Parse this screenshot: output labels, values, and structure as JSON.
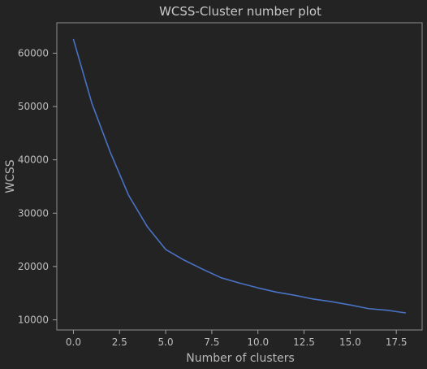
{
  "colors": {
    "background": "#232323",
    "axes_edge": "#8c8c8c",
    "tick": "#a0a0a0",
    "line": "#4a72c4"
  },
  "chart_data": {
    "type": "line",
    "title": "WCSS-Cluster number plot",
    "xlabel": "Number of clusters",
    "ylabel": "WCSS",
    "xlim": [
      -0.9,
      18.9
    ],
    "ylim": [
      8100,
      65700
    ],
    "xticks": [
      0.0,
      2.5,
      5.0,
      7.5,
      10.0,
      12.5,
      15.0,
      17.5
    ],
    "xtick_labels": [
      "0.0",
      "2.5",
      "5.0",
      "7.5",
      "10.0",
      "12.5",
      "15.0",
      "17.5"
    ],
    "yticks": [
      10000,
      20000,
      30000,
      40000,
      50000,
      60000
    ],
    "ytick_labels": [
      "10000",
      "20000",
      "30000",
      "40000",
      "50000",
      "60000"
    ],
    "grid": false,
    "series": [
      {
        "name": "WCSS",
        "x": [
          0,
          1,
          2,
          3,
          4,
          5,
          6,
          7,
          8,
          9,
          10,
          11,
          12,
          13,
          14,
          15,
          16,
          17,
          18
        ],
        "values": [
          62600,
          50600,
          41400,
          33300,
          27500,
          23200,
          21200,
          19500,
          17900,
          16900,
          16000,
          15200,
          14600,
          13900,
          13400,
          12800,
          12100,
          11800,
          11300
        ]
      }
    ]
  }
}
